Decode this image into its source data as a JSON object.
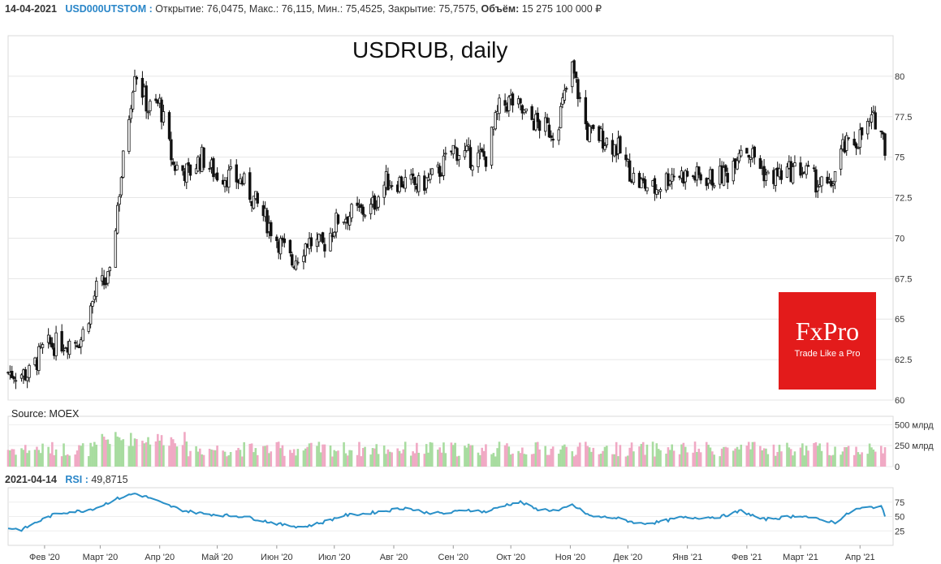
{
  "header": {
    "date": "14-04-2021",
    "symbol": "USD000UTSTOM",
    "open_label": "Открытие:",
    "open_value": "76,0475",
    "high_label": "Макс.:",
    "high_value": "76,115",
    "low_label": "Мин.:",
    "low_value": "75,4525",
    "close_label": "Закрытие:",
    "close_value": "75,7575",
    "volume_label": "Объём:",
    "volume_value": "15 275 100 000 ₽"
  },
  "title": "USDRUB, daily",
  "source": "Source: MOEX",
  "logo": {
    "brand": "FxPro",
    "tagline": "Trade Like a Pro"
  },
  "rsi_header": {
    "date": "2021-04-14",
    "label": "RSI",
    "value": "49,8715"
  },
  "colors": {
    "up": "#ffffff",
    "down": "#111111",
    "vol_up": "#a8dca0",
    "vol_down": "#f0a9c4",
    "rsi_line": "#2a90c8",
    "accent": "#2a86c8",
    "logo": "#e31b1b"
  },
  "chart_data": [
    {
      "type": "candlestick",
      "title": "USDRUB, daily",
      "ylim": [
        60,
        82.5
      ],
      "y_ticks": [
        "60",
        "62.5",
        "65",
        "67.5",
        "70",
        "72.5",
        "75",
        "77.5",
        "80"
      ],
      "x_ticks": [
        "Фев '20",
        "Март '20",
        "Апр '20",
        "Май '20",
        "Июн '20",
        "Июл '20",
        "Авг '20",
        "Сен '20",
        "Окт '20",
        "Ноя '20",
        "Дек '20",
        "Янв '21",
        "Фев '21",
        "Март '21",
        "Апр '21"
      ],
      "x_dates": [
        "2020-01-13",
        "2021-04-14"
      ],
      "close_path": [
        [
          "2020-01-13",
          61.7
        ],
        [
          "2020-01-24",
          61.6
        ],
        [
          "2020-02-01",
          63.3
        ],
        [
          "2020-02-12",
          63.6
        ],
        [
          "2020-02-20",
          63.8
        ],
        [
          "2020-02-28",
          66.8
        ],
        [
          "2020-03-06",
          67.5
        ],
        [
          "2020-03-10",
          72.0
        ],
        [
          "2020-03-19",
          80.5
        ],
        [
          "2020-03-26",
          78.0
        ],
        [
          "2020-04-01",
          78.3
        ],
        [
          "2020-04-08",
          74.5
        ],
        [
          "2020-04-16",
          74.0
        ],
        [
          "2020-04-23",
          75.0
        ],
        [
          "2020-04-30",
          74.0
        ],
        [
          "2020-05-07",
          73.8
        ],
        [
          "2020-05-14",
          73.5
        ],
        [
          "2020-05-22",
          72.0
        ],
        [
          "2020-06-01",
          70.0
        ],
        [
          "2020-06-09",
          68.5
        ],
        [
          "2020-06-17",
          69.8
        ],
        [
          "2020-06-25",
          69.5
        ],
        [
          "2020-07-03",
          71.2
        ],
        [
          "2020-07-10",
          71.5
        ],
        [
          "2020-07-20",
          71.8
        ],
        [
          "2020-07-28",
          73.5
        ],
        [
          "2020-08-05",
          73.5
        ],
        [
          "2020-08-14",
          73.2
        ],
        [
          "2020-08-24",
          74.0
        ],
        [
          "2020-09-01",
          75.5
        ],
        [
          "2020-09-10",
          75.0
        ],
        [
          "2020-09-18",
          75.0
        ],
        [
          "2020-09-25",
          78.0
        ],
        [
          "2020-10-01",
          78.5
        ],
        [
          "2020-10-09",
          77.5
        ],
        [
          "2020-10-16",
          77.0
        ],
        [
          "2020-10-24",
          76.5
        ],
        [
          "2020-11-02",
          80.5
        ],
        [
          "2020-11-10",
          76.5
        ],
        [
          "2020-11-18",
          76.2
        ],
        [
          "2020-11-26",
          75.5
        ],
        [
          "2020-12-05",
          73.5
        ],
        [
          "2020-12-15",
          73.0
        ],
        [
          "2020-12-24",
          74.0
        ],
        [
          "2021-01-05",
          73.8
        ],
        [
          "2021-01-14",
          73.7
        ],
        [
          "2021-01-22",
          74.0
        ],
        [
          "2021-01-29",
          75.8
        ],
        [
          "2021-02-05",
          75.0
        ],
        [
          "2021-02-12",
          73.7
        ],
        [
          "2021-02-20",
          74.0
        ],
        [
          "2021-03-01",
          74.3
        ],
        [
          "2021-03-09",
          73.5
        ],
        [
          "2021-03-16",
          73.0
        ],
        [
          "2021-03-23",
          75.5
        ],
        [
          "2021-03-30",
          76.0
        ],
        [
          "2021-04-06",
          77.0
        ],
        [
          "2021-04-10",
          77.5
        ],
        [
          "2021-04-14",
          75.76
        ]
      ]
    },
    {
      "type": "bar",
      "name": "volume",
      "y_ticks": [
        "0",
        "250 млрд",
        "500 млрд"
      ],
      "ylim": [
        0,
        600
      ],
      "unit": "млрд ₽"
    },
    {
      "type": "line",
      "name": "RSI",
      "ylim": [
        0,
        100
      ],
      "y_ticks": [
        "25",
        "50",
        "75"
      ],
      "last_value": 49.8715,
      "rsi_path": [
        [
          "2020-01-13",
          30
        ],
        [
          "2020-01-20",
          27
        ],
        [
          "2020-01-31",
          45
        ],
        [
          "2020-02-07",
          55
        ],
        [
          "2020-02-14",
          58
        ],
        [
          "2020-02-21",
          60
        ],
        [
          "2020-02-28",
          65
        ],
        [
          "2020-03-09",
          80
        ],
        [
          "2020-03-19",
          90
        ],
        [
          "2020-03-27",
          82
        ],
        [
          "2020-04-03",
          72
        ],
        [
          "2020-04-14",
          60
        ],
        [
          "2020-04-24",
          55
        ],
        [
          "2020-05-05",
          52
        ],
        [
          "2020-05-15",
          50
        ],
        [
          "2020-05-26",
          42
        ],
        [
          "2020-06-05",
          35
        ],
        [
          "2020-06-15",
          32
        ],
        [
          "2020-06-25",
          40
        ],
        [
          "2020-07-06",
          52
        ],
        [
          "2020-07-17",
          55
        ],
        [
          "2020-07-28",
          60
        ],
        [
          "2020-08-07",
          65
        ],
        [
          "2020-08-18",
          57
        ],
        [
          "2020-08-28",
          55
        ],
        [
          "2020-09-08",
          62
        ],
        [
          "2020-09-18",
          58
        ],
        [
          "2020-09-28",
          70
        ],
        [
          "2020-10-06",
          75
        ],
        [
          "2020-10-14",
          63
        ],
        [
          "2020-10-26",
          60
        ],
        [
          "2020-11-02",
          70
        ],
        [
          "2020-11-12",
          50
        ],
        [
          "2020-11-24",
          48
        ],
        [
          "2020-12-07",
          38
        ],
        [
          "2020-12-17",
          40
        ],
        [
          "2020-12-28",
          48
        ],
        [
          "2021-01-08",
          48
        ],
        [
          "2021-01-19",
          50
        ],
        [
          "2021-01-29",
          60
        ],
        [
          "2021-02-09",
          45
        ],
        [
          "2021-02-19",
          48
        ],
        [
          "2021-03-01",
          52
        ],
        [
          "2021-03-10",
          45
        ],
        [
          "2021-03-19",
          40
        ],
        [
          "2021-03-29",
          62
        ],
        [
          "2021-04-06",
          66
        ],
        [
          "2021-04-12",
          68
        ],
        [
          "2021-04-14",
          49.87
        ]
      ]
    }
  ]
}
